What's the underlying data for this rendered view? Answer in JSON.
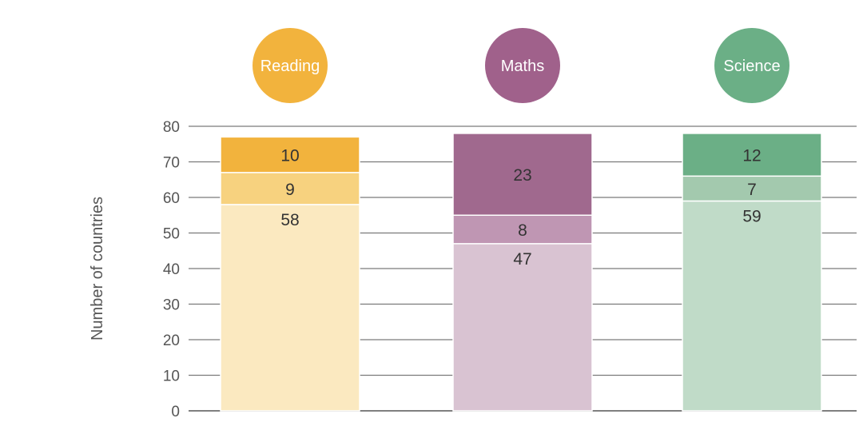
{
  "chart_data": {
    "type": "bar",
    "stacked": true,
    "ylabel": "Number of countries",
    "ylim": [
      0,
      80
    ],
    "yticks": [
      0,
      10,
      20,
      30,
      40,
      50,
      60,
      70,
      80
    ],
    "grid": true,
    "categories": [
      "Reading",
      "Maths",
      "Science"
    ],
    "category_colors": [
      "#F2B33D",
      "#A0618B",
      "#6BAF86"
    ],
    "stacks": [
      {
        "category": "Reading",
        "segments": [
          {
            "value": 58,
            "color": "#FBE9C0"
          },
          {
            "value": 9,
            "color": "#F7D27F"
          },
          {
            "value": 10,
            "color": "#F2B33D"
          }
        ]
      },
      {
        "category": "Maths",
        "segments": [
          {
            "value": 47,
            "color": "#D9C3D2"
          },
          {
            "value": 8,
            "color": "#BF96B3"
          },
          {
            "value": 23,
            "color": "#A0698E"
          }
        ]
      },
      {
        "category": "Science",
        "segments": [
          {
            "value": 59,
            "color": "#C0DBC8"
          },
          {
            "value": 7,
            "color": "#A3C9AE"
          },
          {
            "value": 12,
            "color": "#6BAF86"
          }
        ]
      }
    ]
  }
}
